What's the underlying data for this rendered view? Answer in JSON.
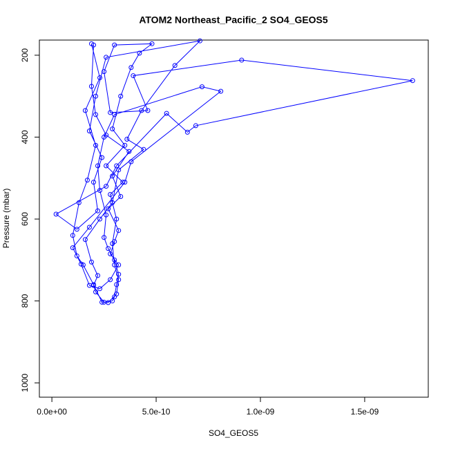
{
  "chart_data": {
    "type": "line",
    "title": "ATOM2 Northeast_Pacific_2 SO4_GEOS5",
    "x_label": "SO4_GEOS5",
    "y_label": "Pressure (mbar)",
    "color": "#0000ff",
    "marker": "open-circle",
    "xlim": [
      -6e-11,
      1.805e-09
    ],
    "ylim": [
      1035,
      163
    ],
    "xticks": [
      {
        "value": 0,
        "label": "0.0e+00"
      },
      {
        "value": 5e-10,
        "label": "5.0e-10"
      },
      {
        "value": 1e-09,
        "label": "1.0e-09"
      },
      {
        "value": 1.5e-09,
        "label": "1.5e-09"
      }
    ],
    "yticks": [
      200,
      400,
      600,
      800,
      1000
    ],
    "x": [
      1.9e-10,
      2.3e-10,
      1.6e-10,
      2.1e-10,
      1.7e-10,
      1.3e-10,
      1e-10,
      1.2e-10,
      1.5e-10,
      2e-10,
      2.4e-10,
      2.7e-10,
      3.1e-10,
      3.2e-10,
      3e-10,
      2.9e-10,
      3.1e-10,
      2.8e-10,
      3.4e-10,
      2.6e-10,
      3.5e-10,
      2.9e-10,
      3.3e-10,
      3.8e-10,
      4.2e-10,
      4.8e-10,
      3e-10,
      2.5e-10,
      2.8e-10,
      4.6e-10,
      3.9e-10,
      9.1e-10,
      1.73e-09,
      6.9e-10,
      6.5e-10,
      5.5e-10,
      3.1e-10,
      2.6e-10,
      2e-11,
      1.2e-10,
      2.2e-10,
      2e-10,
      2.4e-10,
      1.8e-10,
      2.1e-10,
      2.6e-10,
      7.1e-10,
      5.9e-10,
      4.3e-10,
      3.6e-10,
      4.4e-10,
      3.2e-10,
      2.9e-10,
      2.3e-10,
      1.6e-10,
      1.9e-10,
      2.2e-10,
      2e-10,
      2.1e-10,
      2.5e-10,
      2.9e-10,
      3e-10,
      3.1e-10,
      3.2e-10,
      3e-10,
      2.7e-10,
      2.5e-10,
      2.6e-10,
      2.3e-10,
      2.2e-10,
      2.5e-10,
      3e-10,
      7.2e-10,
      8.1e-10,
      3.8e-10,
      3.5e-10,
      1.8e-10,
      1e-10,
      1.4e-10,
      1.8e-10,
      2.3e-10,
      2.8e-10,
      3.2e-10,
      2.8e-10,
      3e-10,
      3.2e-10,
      2.7e-10,
      3.3e-10,
      2.9e-10,
      3.7e-10,
      2.6e-10,
      2.1e-10,
      1.9e-10,
      2e-10
    ],
    "values": [
      172,
      255,
      335,
      420,
      505,
      560,
      640,
      690,
      712,
      760,
      803,
      804,
      783,
      748,
      712,
      660,
      600,
      540,
      510,
      470,
      420,
      380,
      300,
      230,
      195,
      172,
      175,
      240,
      340,
      335,
      250,
      212,
      262,
      372,
      388,
      342,
      470,
      520,
      588,
      625,
      580,
      510,
      450,
      385,
      300,
      205,
      165,
      225,
      335,
      405,
      430,
      480,
      560,
      600,
      650,
      705,
      738,
      762,
      778,
      803,
      800,
      790,
      760,
      735,
      700,
      672,
      645,
      590,
      530,
      470,
      400,
      345,
      277,
      288,
      460,
      510,
      620,
      670,
      710,
      762,
      770,
      748,
      712,
      685,
      655,
      628,
      575,
      545,
      495,
      435,
      395,
      345,
      276,
      175
    ]
  }
}
